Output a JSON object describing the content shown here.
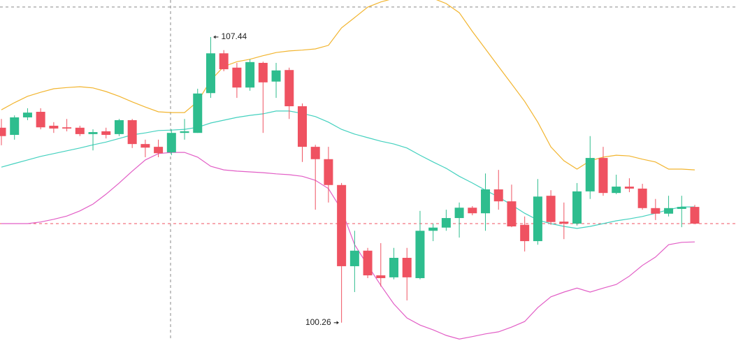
{
  "chart_data": {
    "type": "candlestick",
    "ylim": [
      99.8,
      108.37
    ],
    "up_color": "#2ebd8e",
    "down_color": "#ef5261",
    "open": [
      105.16,
      104.98,
      105.42,
      105.56,
      105.21,
      105.17,
      105.16,
      105.0,
      105.07,
      105.0,
      105.35,
      104.75,
      104.68,
      104.54,
      105.03,
      105.03,
      106.03,
      107.03,
      106.67,
      106.17,
      106.79,
      106.32,
      106.61,
      105.7,
      104.68,
      104.37,
      103.72,
      101.68,
      102.07,
      101.45,
      101.4,
      101.89,
      101.38,
      102.57,
      102.65,
      102.89,
      103.15,
      103.01,
      103.61,
      103.31,
      102.72,
      102.31,
      103.45,
      102.8,
      102.75,
      103.56,
      104.4,
      103.52,
      103.68,
      103.63,
      103.14,
      103.0,
      103.12,
      103.17
    ],
    "high": [
      105.38,
      105.47,
      105.65,
      105.65,
      105.3,
      105.38,
      105.21,
      105.12,
      105.16,
      105.38,
      105.38,
      104.86,
      104.86,
      105.12,
      105.38,
      106.14,
      107.44,
      107.11,
      106.79,
      106.88,
      106.82,
      106.79,
      106.67,
      105.77,
      104.73,
      104.68,
      103.77,
      102.57,
      102.14,
      102.26,
      102.14,
      102.14,
      103.07,
      102.75,
      103.1,
      103.28,
      103.19,
      104.01,
      104.1,
      103.73,
      102.93,
      103.87,
      103.59,
      103.28,
      103.77,
      104.95,
      104.68,
      103.98,
      103.89,
      103.75,
      103.37,
      103.45,
      103.45,
      103.22
    ],
    "low": [
      104.72,
      104.86,
      105.35,
      105.12,
      105.03,
      105.07,
      104.95,
      104.59,
      104.89,
      104.95,
      104.65,
      104.42,
      104.42,
      104.47,
      104.86,
      105.03,
      105.91,
      106.58,
      105.91,
      106.09,
      105.03,
      105.91,
      105.38,
      104.3,
      103.1,
      103.28,
      100.26,
      101.03,
      101.38,
      101.17,
      101.35,
      100.82,
      101.35,
      102.31,
      102.57,
      102.4,
      102.96,
      102.57,
      103.1,
      102.66,
      102.05,
      102.22,
      102.72,
      102.36,
      102.7,
      103.37,
      103.45,
      103.49,
      103.54,
      103.1,
      102.84,
      102.93,
      102.66,
      102.75
    ],
    "close": [
      104.95,
      105.42,
      105.54,
      105.17,
      105.14,
      105.14,
      105.0,
      105.05,
      104.98,
      105.35,
      104.75,
      104.66,
      104.52,
      105.03,
      105.07,
      106.02,
      107.03,
      106.63,
      106.17,
      106.81,
      106.3,
      106.6,
      105.7,
      104.68,
      104.37,
      103.72,
      101.68,
      102.07,
      101.45,
      101.38,
      101.89,
      101.4,
      102.57,
      102.65,
      102.89,
      103.15,
      103.01,
      103.61,
      103.31,
      102.68,
      102.31,
      103.43,
      102.79,
      102.75,
      103.56,
      104.4,
      103.52,
      103.68,
      103.63,
      103.14,
      103.0,
      103.14,
      103.17,
      102.75
    ],
    "bands": [
      {
        "color": "#f2b530",
        "values": [
          105.61,
          105.79,
          105.95,
          106.05,
          106.14,
          106.17,
          106.19,
          106.16,
          106.07,
          105.95,
          105.81,
          105.68,
          105.56,
          105.54,
          105.54,
          105.82,
          106.35,
          106.7,
          106.82,
          106.88,
          106.97,
          107.05,
          107.09,
          107.11,
          107.14,
          107.23,
          107.67,
          107.93,
          108.19,
          108.32,
          108.41,
          108.46,
          108.46,
          108.41,
          108.28,
          108.05,
          107.58,
          107.14,
          106.7,
          106.26,
          105.82,
          105.3,
          104.68,
          104.33,
          104.12,
          104.33,
          104.42,
          104.47,
          104.45,
          104.37,
          104.3,
          104.12,
          104.12,
          104.1
        ]
      },
      {
        "color": "#44d1bf",
        "values": [
          104.17,
          104.26,
          104.35,
          104.44,
          104.51,
          104.58,
          104.65,
          104.73,
          104.8,
          104.89,
          104.98,
          105.03,
          105.09,
          105.1,
          105.12,
          105.17,
          105.28,
          105.35,
          105.42,
          105.47,
          105.51,
          105.58,
          105.58,
          105.52,
          105.44,
          105.3,
          105.12,
          105.0,
          104.91,
          104.82,
          104.75,
          104.65,
          104.47,
          104.3,
          104.14,
          103.94,
          103.77,
          103.59,
          103.42,
          103.22,
          103.01,
          102.84,
          102.75,
          102.68,
          102.63,
          102.68,
          102.75,
          102.82,
          102.87,
          102.93,
          103.01,
          103.1,
          103.17,
          103.17
        ]
      },
      {
        "color": "#e25ec6",
        "values": [
          102.75,
          102.75,
          102.75,
          102.79,
          102.86,
          102.94,
          103.07,
          103.24,
          103.49,
          103.77,
          104.07,
          104.35,
          104.51,
          104.54,
          104.54,
          104.42,
          104.19,
          104.1,
          104.07,
          104.05,
          104.03,
          104.0,
          103.98,
          103.94,
          103.84,
          103.63,
          103.1,
          102.22,
          101.7,
          101.2,
          100.73,
          100.38,
          100.2,
          100.08,
          99.94,
          99.85,
          99.91,
          99.98,
          100.03,
          100.15,
          100.29,
          100.64,
          100.91,
          101.03,
          101.13,
          101.03,
          101.13,
          101.22,
          101.43,
          101.7,
          101.91,
          102.22,
          102.28,
          102.29
        ]
      }
    ]
  }
}
